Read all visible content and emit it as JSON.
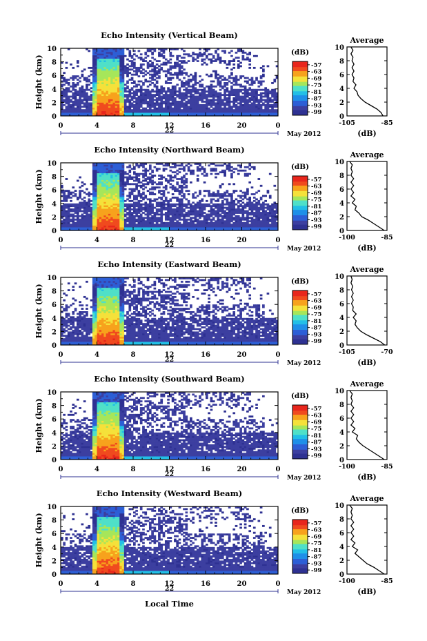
{
  "chart_data": {
    "type": "heatmap",
    "x_label": "Local Time",
    "month_label": "May 2012",
    "day_label": "22",
    "y_label": "Height (km)",
    "x_ticks": [
      "0",
      "4",
      "8",
      "12",
      "16",
      "20",
      "0"
    ],
    "x_range": [
      0,
      24
    ],
    "y_ticks": [
      "0",
      "2",
      "4",
      "6",
      "8",
      "10"
    ],
    "y_range": [
      0,
      10
    ],
    "colorbar_unit": "(dB)",
    "colorbar_ticks": [
      "-57",
      "-63",
      "-69",
      "-75",
      "-81",
      "-87",
      "-93",
      "-99"
    ],
    "colorbar_range": [
      -102,
      -54
    ],
    "colorscale": [
      "#2e3192",
      "#3c3fa0",
      "#2d5fd6",
      "#1e8fe8",
      "#22bfe6",
      "#4fe0c8",
      "#a6e65a",
      "#f5e13a",
      "#f7a21c",
      "#f04a1e",
      "#e8261c"
    ],
    "avg_title": "Average",
    "avg_xlabel": "(dB)",
    "avg_y_range": [
      0,
      10
    ],
    "panels": [
      {
        "title": "Echo Intensity (Vertical Beam)",
        "avg_xticks": [
          "-105",
          "-85"
        ],
        "avg_x_range": [
          -105,
          -85
        ],
        "avg_profile": [
          [
            0,
            -87
          ],
          [
            0.5,
            -88
          ],
          [
            1,
            -90
          ],
          [
            1.5,
            -93
          ],
          [
            2,
            -96
          ],
          [
            2.5,
            -98
          ],
          [
            3,
            -99.5
          ],
          [
            3.5,
            -100
          ],
          [
            4,
            -101.5
          ],
          [
            4.5,
            -100.5
          ],
          [
            5,
            -102
          ],
          [
            5.5,
            -101.5
          ],
          [
            6,
            -102.5
          ],
          [
            6.5,
            -101.5
          ],
          [
            7,
            -102.5
          ],
          [
            7.5,
            -101.5
          ],
          [
            8,
            -102.5
          ],
          [
            8.5,
            -102
          ],
          [
            9,
            -103
          ],
          [
            9.5,
            -102
          ],
          [
            10,
            -103
          ]
        ]
      },
      {
        "title": "Echo Intensity (Northward Beam)",
        "avg_xticks": [
          "-100",
          "-85"
        ],
        "avg_x_range": [
          -100,
          -85
        ],
        "avg_profile": [
          [
            0,
            -86
          ],
          [
            0.5,
            -88
          ],
          [
            1,
            -90
          ],
          [
            1.5,
            -92
          ],
          [
            2,
            -94.5
          ],
          [
            2.5,
            -95.5
          ],
          [
            3,
            -97
          ],
          [
            3.5,
            -96.5
          ],
          [
            4,
            -98
          ],
          [
            4.5,
            -97
          ],
          [
            5,
            -98.5
          ],
          [
            5.5,
            -97.5
          ],
          [
            6,
            -98.5
          ],
          [
            6.5,
            -97.5
          ],
          [
            7,
            -98.5
          ],
          [
            7.5,
            -97.5
          ],
          [
            8,
            -98.5
          ],
          [
            8.5,
            -98
          ],
          [
            9,
            -98.5
          ],
          [
            9.5,
            -98
          ],
          [
            10,
            -99
          ]
        ]
      },
      {
        "title": "Echo Intensity (Eastward Beam)",
        "avg_xticks": [
          "-105",
          "-70"
        ],
        "avg_x_range": [
          -105,
          -70
        ],
        "avg_profile": [
          [
            0,
            -72
          ],
          [
            0.5,
            -76
          ],
          [
            1,
            -82
          ],
          [
            1.5,
            -88
          ],
          [
            2,
            -93
          ],
          [
            2.5,
            -96
          ],
          [
            3,
            -98
          ],
          [
            3.5,
            -97
          ],
          [
            4,
            -99.5
          ],
          [
            4.5,
            -97
          ],
          [
            5,
            -100
          ],
          [
            5.5,
            -99.5
          ],
          [
            6,
            -101
          ],
          [
            6.5,
            -99.5
          ],
          [
            7,
            -101
          ],
          [
            7.5,
            -99.5
          ],
          [
            8,
            -101
          ],
          [
            8.5,
            -100
          ],
          [
            9,
            -101.5
          ],
          [
            9.5,
            -100.5
          ],
          [
            10,
            -101.5
          ]
        ]
      },
      {
        "title": "Echo Intensity (Southward Beam)",
        "avg_xticks": [
          "-100",
          "-85"
        ],
        "avg_x_range": [
          -100,
          -85
        ],
        "avg_profile": [
          [
            0,
            -86
          ],
          [
            0.5,
            -88
          ],
          [
            1,
            -90
          ],
          [
            1.5,
            -92
          ],
          [
            2,
            -94
          ],
          [
            2.5,
            -95.5
          ],
          [
            3,
            -96.5
          ],
          [
            3.5,
            -96
          ],
          [
            4,
            -98
          ],
          [
            4.5,
            -97
          ],
          [
            5,
            -98.5
          ],
          [
            5.5,
            -97.5
          ],
          [
            6,
            -98.5
          ],
          [
            6.5,
            -97.5
          ],
          [
            7,
            -98.5
          ],
          [
            7.5,
            -97.5
          ],
          [
            8,
            -98.5
          ],
          [
            8.5,
            -98
          ],
          [
            9,
            -98.5
          ],
          [
            9.5,
            -98
          ],
          [
            10,
            -99
          ]
        ]
      },
      {
        "title": "Echo Intensity (Westward Beam)",
        "avg_xticks": [
          "-100",
          "-85"
        ],
        "avg_x_range": [
          -100,
          -85
        ],
        "avg_profile": [
          [
            0,
            -86
          ],
          [
            0.5,
            -88
          ],
          [
            1,
            -90
          ],
          [
            1.5,
            -92.5
          ],
          [
            2,
            -94
          ],
          [
            2.5,
            -95.5
          ],
          [
            3,
            -97
          ],
          [
            3.5,
            -96
          ],
          [
            4,
            -98
          ],
          [
            4.5,
            -97
          ],
          [
            5,
            -98.5
          ],
          [
            5.5,
            -97.5
          ],
          [
            6,
            -98.5
          ],
          [
            6.5,
            -97.5
          ],
          [
            7,
            -98.5
          ],
          [
            7.5,
            -97.5
          ],
          [
            8,
            -98.5
          ],
          [
            8.5,
            -98
          ],
          [
            9,
            -98.5
          ],
          [
            9.5,
            -98
          ],
          [
            10,
            -99
          ]
        ]
      }
    ]
  }
}
